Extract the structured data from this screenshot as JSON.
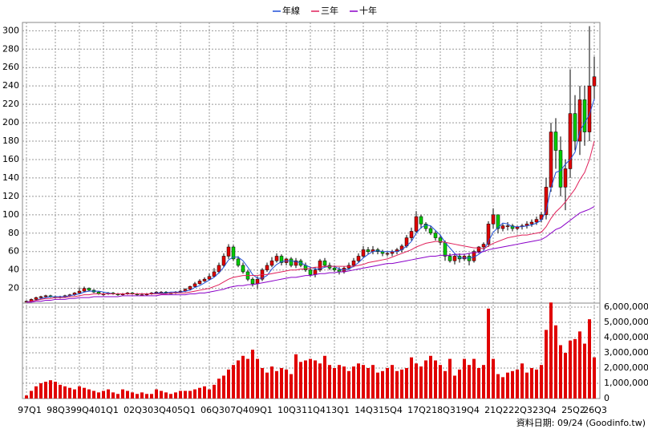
{
  "chart_data": [
    {
      "type": "candlestick",
      "open": [
        5,
        6,
        8,
        10,
        11,
        12,
        11,
        10,
        11,
        12,
        13,
        15,
        17,
        20,
        18,
        16,
        14,
        14,
        15,
        14,
        13,
        14,
        15,
        14,
        13,
        13,
        14,
        15,
        16,
        16,
        15,
        15,
        16,
        17,
        19,
        22,
        25,
        28,
        30,
        33,
        38,
        45,
        55,
        65,
        52,
        45,
        38,
        30,
        25,
        30,
        40,
        45,
        50,
        55,
        48,
        52,
        45,
        50,
        45,
        40,
        35,
        40,
        50,
        45,
        42,
        40,
        38,
        42,
        45,
        50,
        55,
        62,
        60,
        62,
        60,
        58,
        58,
        60,
        62,
        66,
        75,
        82,
        98,
        90,
        85,
        80,
        75,
        70,
        55,
        50,
        55,
        52,
        55,
        50,
        60,
        65,
        68,
        90,
        100,
        85,
        88,
        88,
        85,
        87,
        88,
        90,
        92,
        95,
        100,
        130,
        190,
        170,
        130,
        150,
        210,
        180,
        225,
        190,
        240
      ],
      "high": [
        7,
        9,
        11,
        12,
        13,
        13,
        12,
        12,
        13,
        14,
        16,
        21,
        22,
        21,
        19,
        17,
        16,
        16,
        16,
        15,
        15,
        16,
        16,
        15,
        15,
        15,
        16,
        17,
        17,
        17,
        16,
        17,
        18,
        20,
        23,
        27,
        30,
        32,
        36,
        42,
        48,
        58,
        68,
        67,
        55,
        48,
        40,
        32,
        33,
        42,
        48,
        54,
        58,
        57,
        53,
        54,
        53,
        52,
        48,
        42,
        43,
        52,
        53,
        48,
        45,
        43,
        44,
        48,
        53,
        58,
        66,
        65,
        66,
        64,
        62,
        60,
        62,
        64,
        68,
        78,
        86,
        104,
        100,
        92,
        88,
        83,
        78,
        72,
        58,
        58,
        58,
        57,
        58,
        62,
        66,
        70,
        93,
        107,
        100,
        90,
        92,
        90,
        88,
        90,
        93,
        95,
        98,
        103,
        140,
        200,
        205,
        185,
        160,
        258,
        230,
        240,
        240,
        305,
        272
      ],
      "low": [
        5,
        5,
        7,
        9,
        10,
        10,
        9,
        9,
        10,
        11,
        12,
        14,
        16,
        17,
        15,
        13,
        12,
        13,
        13,
        12,
        12,
        13,
        13,
        12,
        12,
        12,
        13,
        14,
        15,
        14,
        14,
        14,
        15,
        16,
        18,
        21,
        24,
        27,
        29,
        32,
        36,
        43,
        52,
        50,
        43,
        36,
        28,
        22,
        20,
        28,
        38,
        43,
        48,
        45,
        45,
        43,
        42,
        43,
        38,
        33,
        32,
        38,
        43,
        40,
        38,
        35,
        36,
        40,
        43,
        48,
        53,
        57,
        57,
        57,
        55,
        55,
        55,
        57,
        59,
        64,
        72,
        80,
        85,
        82,
        78,
        72,
        67,
        50,
        48,
        46,
        48,
        50,
        45,
        48,
        58,
        62,
        65,
        85,
        80,
        82,
        83,
        82,
        83,
        84,
        85,
        87,
        89,
        92,
        95,
        125,
        150,
        120,
        105,
        140,
        170,
        165,
        175,
        180,
        225
      ],
      "close": [
        6,
        8,
        10,
        11,
        12,
        11,
        10,
        11,
        12,
        13,
        15,
        17,
        20,
        18,
        16,
        14,
        14,
        15,
        14,
        13,
        14,
        15,
        14,
        13,
        13,
        14,
        15,
        16,
        16,
        15,
        15,
        16,
        17,
        19,
        22,
        25,
        28,
        30,
        33,
        38,
        45,
        55,
        65,
        52,
        45,
        38,
        30,
        25,
        30,
        40,
        45,
        50,
        55,
        48,
        52,
        45,
        50,
        45,
        40,
        35,
        40,
        50,
        45,
        42,
        40,
        38,
        42,
        45,
        50,
        55,
        62,
        60,
        62,
        60,
        58,
        58,
        60,
        62,
        66,
        75,
        82,
        98,
        90,
        85,
        80,
        75,
        70,
        55,
        50,
        55,
        52,
        55,
        50,
        60,
        65,
        68,
        90,
        100,
        85,
        88,
        88,
        85,
        87,
        88,
        90,
        92,
        95,
        100,
        130,
        190,
        170,
        130,
        150,
        210,
        180,
        225,
        190,
        240,
        250
      ],
      "up_color": "#e00000",
      "down_color": "#00cc00",
      "series": [
        {
          "name": "年線",
          "color": "#1f4fd8",
          "values": [
            5,
            6,
            7,
            9,
            10,
            11,
            11,
            11,
            11,
            12,
            13,
            14,
            16,
            17,
            17,
            17,
            16,
            15,
            14,
            14,
            14,
            14,
            14,
            14,
            14,
            14,
            14,
            15,
            15,
            15,
            16,
            16,
            16,
            17,
            18,
            21,
            23,
            26,
            29,
            32,
            37,
            43,
            51,
            54,
            54,
            50,
            43,
            35,
            31,
            31,
            34,
            41,
            46,
            49,
            50,
            50,
            49,
            48,
            45,
            43,
            41,
            41,
            43,
            44,
            44,
            41,
            40,
            41,
            44,
            48,
            53,
            57,
            60,
            61,
            60,
            60,
            60,
            60,
            62,
            66,
            71,
            80,
            86,
            89,
            88,
            83,
            78,
            70,
            64,
            58,
            53,
            53,
            53,
            54,
            57,
            61,
            71,
            81,
            86,
            91,
            90,
            87,
            87,
            87,
            88,
            89,
            91,
            94,
            104,
            129,
            146,
            148,
            155,
            160,
            168,
            191,
            200,
            209,
            226
          ]
        },
        {
          "name": "三年",
          "color": "#e0205a",
          "values": [
            5,
            6,
            7,
            8,
            9,
            9,
            10,
            10,
            10,
            11,
            11,
            12,
            13,
            13,
            14,
            14,
            14,
            14,
            14,
            14,
            14,
            14,
            14,
            14,
            14,
            14,
            14,
            14,
            14,
            14,
            15,
            15,
            15,
            15,
            16,
            17,
            18,
            19,
            20,
            22,
            24,
            27,
            30,
            32,
            33,
            34,
            34,
            34,
            34,
            35,
            35,
            36,
            37,
            38,
            39,
            40,
            40,
            41,
            41,
            42,
            43,
            43,
            44,
            44,
            44,
            44,
            44,
            44,
            44,
            45,
            46,
            48,
            49,
            50,
            51,
            52,
            54,
            56,
            58,
            60,
            62,
            65,
            67,
            69,
            70,
            71,
            71,
            70,
            69,
            68,
            67,
            66,
            65,
            64,
            64,
            63,
            66,
            69,
            71,
            73,
            75,
            76,
            77,
            78,
            78,
            79,
            80,
            81,
            87,
            96,
            103,
            108,
            114,
            121,
            128,
            138,
            146,
            160,
            180
          ]
        },
        {
          "name": "十年",
          "color": "#8a00c8",
          "values": [
            5,
            5,
            6,
            6,
            7,
            7,
            8,
            8,
            8,
            9,
            9,
            10,
            10,
            10,
            11,
            11,
            11,
            11,
            11,
            11,
            12,
            12,
            12,
            12,
            12,
            12,
            12,
            12,
            13,
            13,
            13,
            13,
            13,
            13,
            14,
            14,
            15,
            15,
            16,
            17,
            18,
            19,
            21,
            22,
            23,
            23,
            24,
            24,
            25,
            26,
            27,
            28,
            29,
            30,
            31,
            32,
            32,
            33,
            34,
            34,
            35,
            36,
            36,
            37,
            37,
            38,
            38,
            39,
            40,
            41,
            42,
            43,
            44,
            45,
            46,
            47,
            47,
            48,
            49,
            50,
            51,
            52,
            53,
            54,
            55,
            55,
            56,
            56,
            56,
            57,
            57,
            57,
            58,
            59,
            59,
            60,
            62,
            63,
            64,
            65,
            66,
            67,
            68,
            69,
            70,
            71,
            72,
            73,
            76,
            80,
            84,
            86,
            90,
            94,
            98,
            102,
            104,
            106,
            109
          ]
        }
      ],
      "ylim": [
        4,
        309
      ],
      "yticks": [
        20,
        40,
        60,
        80,
        100,
        120,
        140,
        160,
        180,
        200,
        220,
        240,
        260,
        280,
        300
      ],
      "grid": true
    },
    {
      "type": "bar",
      "categories": [
        "97Q1",
        null,
        null,
        null,
        null,
        null,
        "98Q3",
        null,
        null,
        null,
        null,
        "99Q4",
        null,
        null,
        null,
        null,
        "01Q1",
        null,
        null,
        null,
        null,
        null,
        "02Q3",
        null,
        null,
        null,
        null,
        "03Q4",
        null,
        null,
        null,
        null,
        "05Q1",
        null,
        null,
        null,
        null,
        null,
        "06Q3",
        null,
        null,
        null,
        null,
        "07Q4",
        null,
        null,
        null,
        null,
        "09Q1",
        null,
        null,
        null,
        null,
        null,
        "10Q3",
        null,
        null,
        null,
        null,
        "11Q4",
        null,
        null,
        null,
        null,
        "13Q1",
        null,
        null,
        null,
        null,
        null,
        "14Q3",
        null,
        null,
        null,
        null,
        "15Q4",
        null,
        null,
        null,
        null,
        null,
        "17Q2",
        null,
        null,
        null,
        null,
        "18Q3",
        null,
        null,
        null,
        null,
        "19Q4",
        null,
        null,
        null,
        null,
        null,
        "21Q2",
        null,
        null,
        null,
        null,
        "22Q3",
        null,
        null,
        null,
        null,
        "23Q4",
        null,
        null,
        null,
        null,
        null,
        "25Q2",
        null,
        null,
        null,
        null,
        "26Q3"
      ],
      "values": [
        200000,
        500000,
        800000,
        1000000,
        1100000,
        1200000,
        1100000,
        900000,
        800000,
        700000,
        600000,
        800000,
        700000,
        600000,
        500000,
        400000,
        500000,
        600000,
        400000,
        300000,
        600000,
        500000,
        400000,
        300000,
        400000,
        300000,
        300000,
        600000,
        500000,
        400000,
        300000,
        400000,
        500000,
        500000,
        500000,
        600000,
        700000,
        800000,
        600000,
        900000,
        1300000,
        1500000,
        1900000,
        2200000,
        2500000,
        2800000,
        2600000,
        3200000,
        2600000,
        2000000,
        1700000,
        2100000,
        1800000,
        2000000,
        1900000,
        1600000,
        2900000,
        2400000,
        2500000,
        2600000,
        2500000,
        2300000,
        2800000,
        2200000,
        2000000,
        2200000,
        2100000,
        1800000,
        2100000,
        2300000,
        2200000,
        2000000,
        2200000,
        1700000,
        1800000,
        2000000,
        2200000,
        1800000,
        1900000,
        2000000,
        2700000,
        2300000,
        2100000,
        2500000,
        2800000,
        2500000,
        2200000,
        1800000,
        2600000,
        1500000,
        1900000,
        2600000,
        2200000,
        2600000,
        2000000,
        2200000,
        5900000,
        2600000,
        1600000,
        1400000,
        1700000,
        1800000,
        1900000,
        2300000,
        1700000,
        2000000,
        1900000,
        2200000,
        4500000,
        6300000,
        4800000,
        3500000,
        3000000,
        3800000,
        3900000,
        4400000,
        3600000,
        5200000,
        2700000
      ],
      "color": "#e00000",
      "ylim": [
        0,
        6260000
      ],
      "yticks": [
        0,
        {
          "value": 1000000,
          "label": "1,000,000"
        },
        {
          "value": 2000000,
          "label": "2,000,000"
        },
        {
          "value": 3000000,
          "label": "3,000,000"
        },
        {
          "value": 4000000,
          "label": "4,000,000"
        },
        {
          "value": 5000000,
          "label": "5,000,000"
        },
        {
          "value": 6000000,
          "label": "6,000,000"
        }
      ],
      "grid": true,
      "note": "資料日期: 09/24 (Goodinfo.tw)"
    }
  ]
}
